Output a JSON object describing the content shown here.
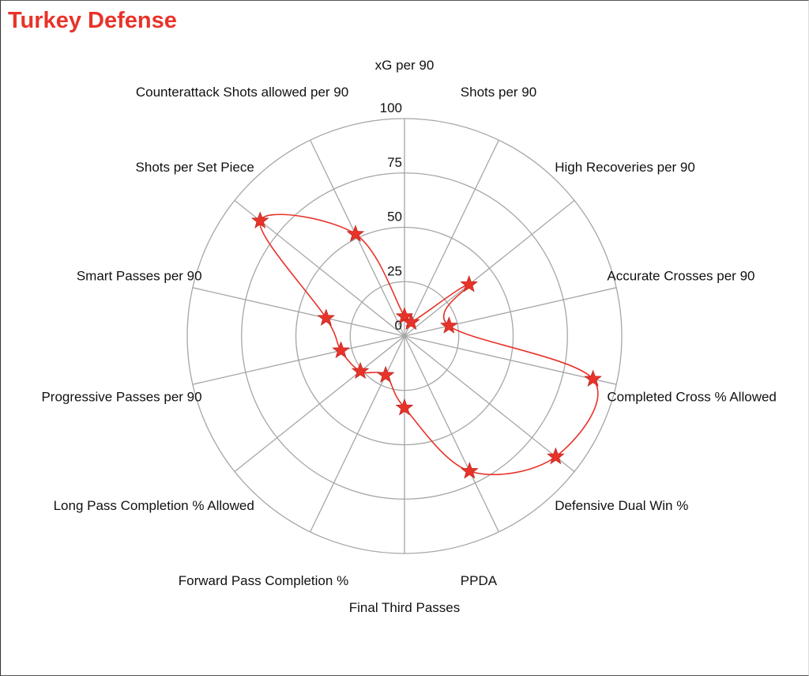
{
  "title": "Turkey Defense",
  "chart_data": {
    "type": "radar",
    "title": "Turkey Defense",
    "rlim": [
      0,
      100
    ],
    "ticks": [
      "0",
      "25",
      "50",
      "75",
      "100"
    ],
    "grid": true,
    "axes": [
      "xG per 90",
      "Shots per 90",
      "High Recoveries per 90",
      "Accurate Crosses per 90",
      "Completed Cross % Allowed",
      "Defensive Dual Win %",
      "PPDA",
      "Final Third Passes",
      "Forward Pass Completion %",
      "Long Pass Completion % Allowed",
      "Progressive Passes per 90",
      "Smart Passes per 90",
      "Shots per Set Piece",
      "Counterattack Shots allowed per 90"
    ],
    "series": [
      {
        "values": [
          9,
          7,
          38,
          21,
          89,
          89,
          69,
          33,
          20,
          26,
          30,
          37,
          85,
          52
        ],
        "color": "#e8332a",
        "marker": "star"
      }
    ]
  }
}
